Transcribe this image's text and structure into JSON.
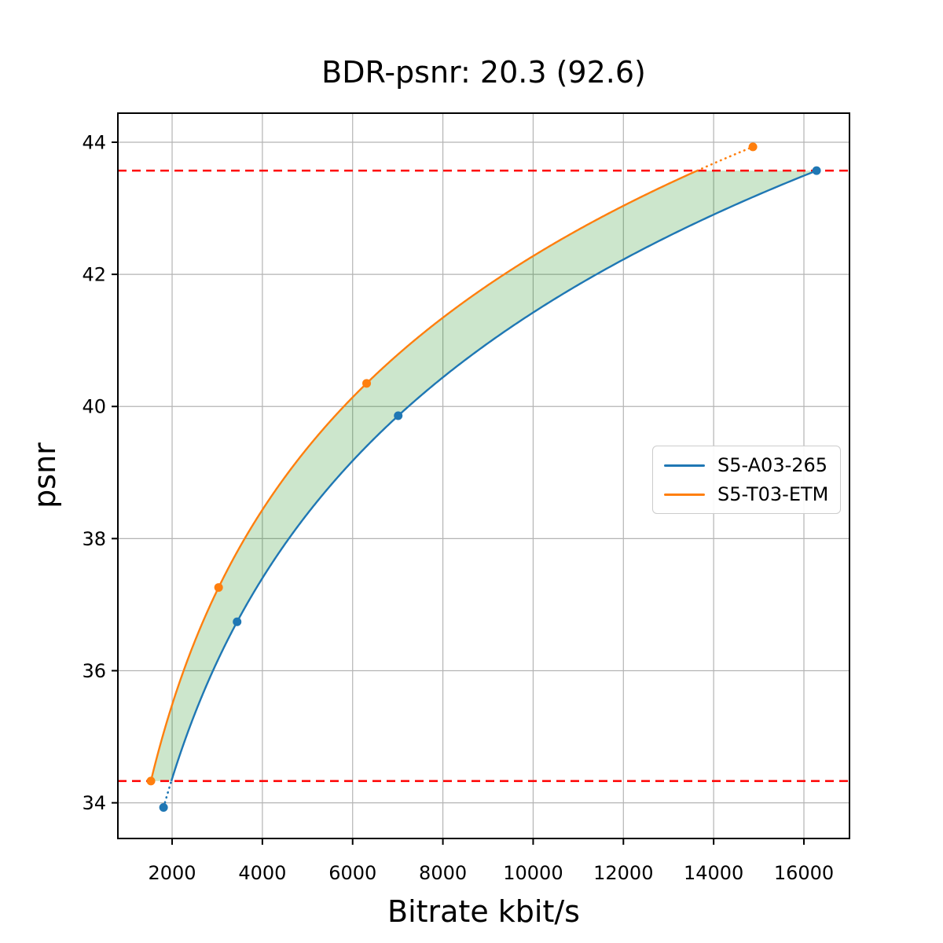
{
  "chart_data": {
    "type": "line",
    "title": "BDR-psnr: 20.3 (92.6)",
    "xlabel": "Bitrate kbit/s",
    "ylabel": "psnr",
    "xlim": [
      798,
      17010
    ],
    "ylim": [
      33.46,
      44.44
    ],
    "xticks": [
      2000,
      4000,
      6000,
      8000,
      10000,
      12000,
      14000,
      16000
    ],
    "yticks": [
      34,
      36,
      38,
      40,
      42,
      44
    ],
    "grid": true,
    "grid_color": "#b4b4b4",
    "legend_position": "center-right",
    "series": [
      {
        "name": "S5-A03-265",
        "color": "#1f77b4",
        "marker": "circle",
        "x": [
          1810,
          3440,
          7010,
          16280
        ],
        "y": [
          33.93,
          36.74,
          39.86,
          43.57
        ]
      },
      {
        "name": "S5-T03-ETM",
        "color": "#ff7f0e",
        "marker": "circle",
        "x": [
          1530,
          3030,
          6310,
          14870
        ],
        "y": [
          34.33,
          37.26,
          40.35,
          43.93
        ]
      }
    ],
    "bd_bounds": {
      "color": "#ff0000",
      "style": "dashed",
      "lower_psnr": 34.33,
      "upper_psnr": 43.57
    },
    "shaded_band": {
      "color": "#008000",
      "opacity": 0.2,
      "between": [
        "S5-T03-ETM",
        "S5-A03-265"
      ],
      "psnr_range": [
        34.33,
        43.57
      ]
    }
  }
}
